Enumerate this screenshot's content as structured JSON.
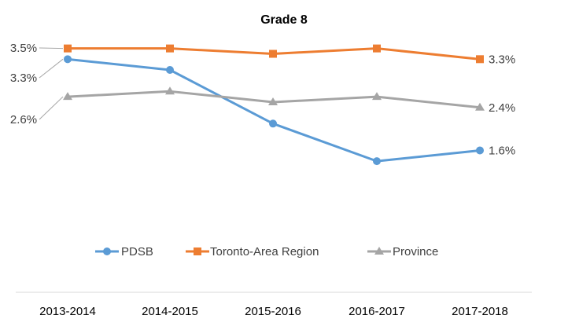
{
  "chart_data": {
    "type": "line",
    "title": "Grade 8",
    "categories": [
      "2013-2014",
      "2014-2015",
      "2015-2016",
      "2016-2017",
      "2017-2018"
    ],
    "series": [
      {
        "name": "PDSB",
        "color": "#5B9BD5",
        "marker": "circle",
        "values": [
          3.3,
          3.1,
          2.1,
          1.4,
          1.6
        ]
      },
      {
        "name": "Toronto-Area Region",
        "color": "#ED7D31",
        "marker": "square",
        "values": [
          3.5,
          3.5,
          3.4,
          3.5,
          3.3
        ]
      },
      {
        "name": "Province",
        "color": "#A5A5A5",
        "marker": "triangle",
        "values": [
          2.6,
          2.7,
          2.5,
          2.6,
          2.4
        ]
      }
    ],
    "start_labels": [
      "3.3%",
      "3.5%",
      "2.6%"
    ],
    "end_labels": [
      "1.6%",
      "3.3%",
      "2.4%"
    ],
    "ylim": [
      0,
      4.2
    ],
    "grid": false,
    "legend_position": "bottom"
  }
}
